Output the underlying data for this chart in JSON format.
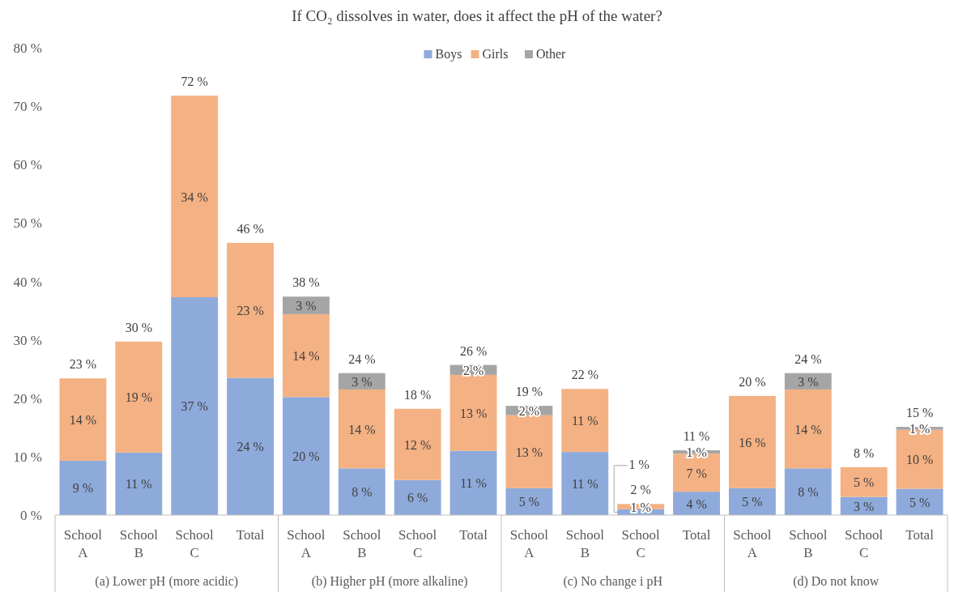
{
  "chart_data": {
    "type": "bar",
    "title": "If CO₂ dissolves in water, does it affect the pH of the water?",
    "stacked": true,
    "legend": "top",
    "grid": false,
    "categories": [
      "School A",
      "School B",
      "School C",
      "Total",
      "School A",
      "School B",
      "School C",
      "Total",
      "School A",
      "School B",
      "School C",
      "Total",
      "School A",
      "School B",
      "School C",
      "Total"
    ],
    "series": [
      {
        "name": "Boys",
        "color": "#8eaadb",
        "values": [
          9.3,
          10.7,
          37.3,
          23.5,
          20.2,
          8.0,
          6.0,
          11.0,
          4.6,
          10.8,
          1.0,
          4.0,
          4.6,
          8.0,
          3.1,
          4.5
        ],
        "value_labels": [
          "9 %",
          "11 %",
          "37 %",
          "24 %",
          "20 %",
          "8 %",
          "6 %",
          "11 %",
          "5 %",
          "11 %",
          "1 %",
          "4 %",
          "5 %",
          "8 %",
          "3 %",
          "5 %"
        ]
      },
      {
        "name": "Girls",
        "color": "#f4b183",
        "values": [
          14.1,
          19.0,
          34.5,
          23.1,
          14.2,
          13.5,
          12.2,
          13.0,
          12.5,
          10.8,
          0.9,
          6.5,
          15.8,
          13.5,
          5.1,
          10.1
        ],
        "value_labels": [
          "14 %",
          "19 %",
          "34 %",
          "23 %",
          "14 %",
          "14 %",
          "12 %",
          "13 %",
          "13 %",
          "11 %",
          "1 %",
          "7 %",
          "16 %",
          "14 %",
          "5 %",
          "10 %"
        ]
      },
      {
        "name": "Other",
        "color": "#a5a5a5",
        "values": [
          null,
          null,
          null,
          null,
          3.0,
          2.8,
          null,
          1.7,
          1.6,
          null,
          null,
          0.6,
          null,
          2.8,
          null,
          0.5
        ],
        "value_labels": [
          null,
          null,
          null,
          null,
          "3 %",
          "3 %",
          null,
          "2 %",
          "2 %",
          null,
          null,
          "1 %",
          null,
          "3 %",
          null,
          "1 %"
        ]
      }
    ],
    "totals": [
      "23 %",
      "30 %",
      "72 %",
      "46 %",
      "38 %",
      "24 %",
      "18 %",
      "26 %",
      "19 %",
      "22 %",
      "2 %",
      "11 %",
      "20 %",
      "24 %",
      "8 %",
      "15 %"
    ],
    "ylim": [
      0,
      80
    ],
    "yticks": [
      {
        "value": 0,
        "label": "0 %"
      },
      {
        "value": 10,
        "label": "10 %"
      },
      {
        "value": 20,
        "label": "20 %"
      },
      {
        "value": 30,
        "label": "30 %"
      },
      {
        "value": 40,
        "label": "40 %"
      },
      {
        "value": 50,
        "label": "50 %"
      },
      {
        "value": 60,
        "label": "60 %"
      },
      {
        "value": 70,
        "label": "70 %"
      },
      {
        "value": 80,
        "label": "80 %"
      }
    ],
    "annotations": [
      "(a) Lower pH (more acidic)",
      "(b) Higher pH (more alkaline)",
      "(c) No change i pH",
      "(d) Do not know"
    ]
  }
}
